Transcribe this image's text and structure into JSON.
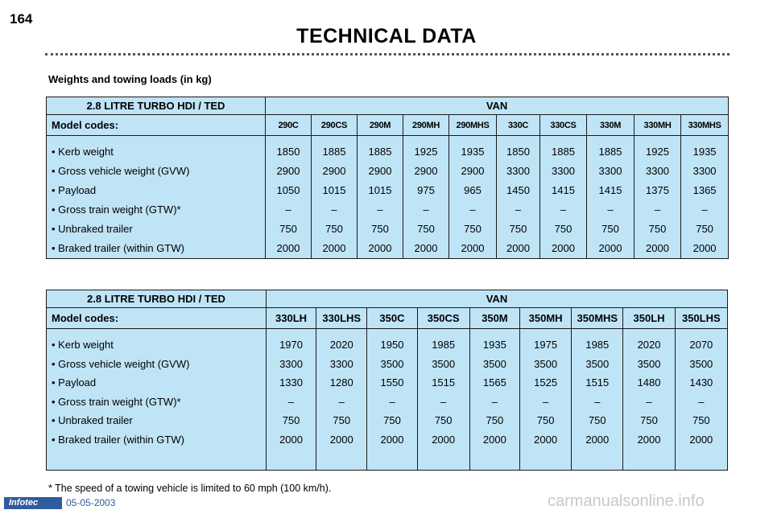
{
  "page_number": "164",
  "title": "TECHNICAL DATA",
  "section_title": "Weights and towing loads (in kg)",
  "row_labels": [
    "• Kerb weight",
    "• Gross vehicle weight (GVW)",
    "• Payload",
    "• Gross train weight (GTW)*",
    "• Unbraked trailer",
    "• Braked trailer (within GTW)"
  ],
  "table1": {
    "engine": "2.8 LITRE TURBO HDI / TED",
    "body": "VAN",
    "model_codes_label": "Model codes:",
    "columns": [
      {
        "code": "290C",
        "values": [
          "1850",
          "2900",
          "1050",
          "–",
          "750",
          "2000"
        ]
      },
      {
        "code": "290CS",
        "values": [
          "1885",
          "2900",
          "1015",
          "–",
          "750",
          "2000"
        ]
      },
      {
        "code": "290M",
        "values": [
          "1885",
          "2900",
          "1015",
          "–",
          "750",
          "2000"
        ]
      },
      {
        "code": "290MH",
        "values": [
          "1925",
          "2900",
          "975",
          "–",
          "750",
          "2000"
        ]
      },
      {
        "code": "290MHS",
        "values": [
          "1935",
          "2900",
          "965",
          "–",
          "750",
          "2000"
        ]
      },
      {
        "code": "330C",
        "values": [
          "1850",
          "3300",
          "1450",
          "–",
          "750",
          "2000"
        ]
      },
      {
        "code": "330CS",
        "values": [
          "1885",
          "3300",
          "1415",
          "–",
          "750",
          "2000"
        ]
      },
      {
        "code": "330M",
        "values": [
          "1885",
          "3300",
          "1415",
          "–",
          "750",
          "2000"
        ]
      },
      {
        "code": "330MH",
        "values": [
          "1925",
          "3300",
          "1375",
          "–",
          "750",
          "2000"
        ]
      },
      {
        "code": "330MHS",
        "values": [
          "1935",
          "3300",
          "1365",
          "–",
          "750",
          "2000"
        ]
      }
    ]
  },
  "table2": {
    "engine": "2.8 LITRE TURBO HDI / TED",
    "body": "VAN",
    "model_codes_label": "Model codes:",
    "columns": [
      {
        "code": "330LH",
        "values": [
          "1970",
          "3300",
          "1330",
          "–",
          "750",
          "2000"
        ]
      },
      {
        "code": "330LHS",
        "values": [
          "2020",
          "3300",
          "1280",
          "–",
          "750",
          "2000"
        ]
      },
      {
        "code": "350C",
        "values": [
          "1950",
          "3500",
          "1550",
          "–",
          "750",
          "2000"
        ]
      },
      {
        "code": "350CS",
        "values": [
          "1985",
          "3500",
          "1515",
          "–",
          "750",
          "2000"
        ]
      },
      {
        "code": "350M",
        "values": [
          "1935",
          "3500",
          "1565",
          "–",
          "750",
          "2000"
        ]
      },
      {
        "code": "350MH",
        "values": [
          "1975",
          "3500",
          "1525",
          "–",
          "750",
          "2000"
        ]
      },
      {
        "code": "350MHS",
        "values": [
          "1985",
          "3500",
          "1515",
          "–",
          "750",
          "2000"
        ]
      },
      {
        "code": "350LH",
        "values": [
          "2020",
          "3500",
          "1480",
          "–",
          "750",
          "2000"
        ]
      },
      {
        "code": "350LHS",
        "values": [
          "2070",
          "3500",
          "1430",
          "–",
          "750",
          "2000"
        ]
      }
    ]
  },
  "footnote": "* The speed of a towing vehicle is limited to 60 mph (100 km/h).",
  "footer": {
    "brand": "Infotec",
    "date": "05-05-2003",
    "watermark": "carmanualsonline.info"
  },
  "colors": {
    "table_fill": "#bfe4f6",
    "footer_blue": "#2f5c9e"
  }
}
